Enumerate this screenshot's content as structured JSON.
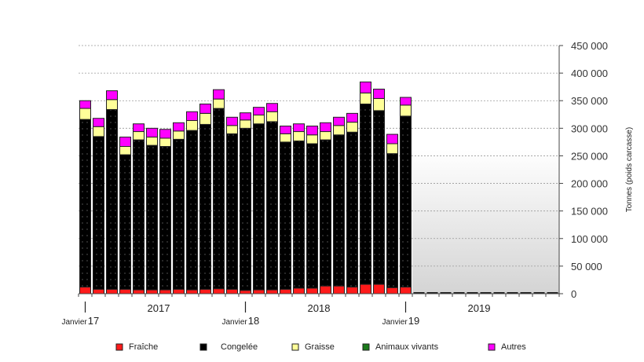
{
  "chart_data": {
    "type": "bar",
    "stacked": true,
    "title": "",
    "ylabel": "Tonnes (poids carcasse)",
    "xlabel": "",
    "ylim": [
      0,
      450000
    ],
    "yticks": [
      0,
      50000,
      100000,
      150000,
      200000,
      250000,
      300000,
      350000,
      400000,
      450000
    ],
    "ytick_labels": [
      "0",
      "50 000",
      "100 000",
      "150 000",
      "200 000",
      "250 000",
      "300 000",
      "350 000",
      "400 000",
      "450 000"
    ],
    "y_axis_side": "right",
    "grid": true,
    "month_slots": 36,
    "year_labels": [
      "2017",
      "2018",
      "2019"
    ],
    "january_labels": [
      {
        "word": "Janvier",
        "year": "17"
      },
      {
        "word": "Janvier",
        "year": "18"
      },
      {
        "word": "Janvier",
        "year": "19"
      }
    ],
    "legend_position": "bottom",
    "series": [
      {
        "name": "Fraîche",
        "color": "#ff1a1a",
        "values": [
          12000,
          8000,
          8000,
          8000,
          7000,
          7000,
          7000,
          8000,
          7000,
          8000,
          9000,
          8000,
          6000,
          7000,
          7000,
          8000,
          10000,
          10000,
          14000,
          14000,
          12000,
          17000,
          17000,
          11000,
          12000,
          0,
          0,
          0,
          0,
          0,
          0,
          0,
          0,
          0,
          0,
          0
        ]
      },
      {
        "name": "Congelée",
        "color": "#000000",
        "values": [
          304000,
          277000,
          326000,
          244000,
          272000,
          262000,
          260000,
          272000,
          289000,
          299000,
          327000,
          282000,
          294000,
          301000,
          305000,
          267000,
          267000,
          262000,
          265000,
          274000,
          281000,
          327000,
          315000,
          243000,
          310000,
          0,
          0,
          0,
          0,
          0,
          0,
          0,
          0,
          0,
          0,
          0
        ]
      },
      {
        "name": "Graisse",
        "color": "#ffff99",
        "values": [
          20000,
          18000,
          18000,
          15000,
          15000,
          15000,
          15000,
          15000,
          18000,
          20000,
          17000,
          15000,
          15000,
          16000,
          18000,
          15000,
          17000,
          16000,
          15000,
          17000,
          18000,
          20000,
          22000,
          18000,
          20000,
          0,
          0,
          0,
          0,
          0,
          0,
          0,
          0,
          0,
          0,
          0
        ]
      },
      {
        "name": "Animaux vivants",
        "color": "#1a7a1a",
        "values": [
          0,
          0,
          0,
          0,
          0,
          0,
          0,
          0,
          0,
          0,
          0,
          0,
          0,
          0,
          0,
          0,
          0,
          0,
          0,
          0,
          0,
          0,
          0,
          0,
          0,
          0,
          0,
          0,
          0,
          0,
          0,
          0,
          0,
          0,
          0,
          0
        ]
      },
      {
        "name": "Autres",
        "color": "#ff00ff",
        "values": [
          14000,
          15000,
          16000,
          17000,
          14000,
          16000,
          16000,
          15000,
          16000,
          17000,
          17000,
          15000,
          13000,
          14000,
          15000,
          14000,
          14000,
          16000,
          16000,
          15000,
          16000,
          20000,
          17000,
          17000,
          14000,
          0,
          0,
          0,
          0,
          0,
          0,
          0,
          0,
          0,
          0,
          0
        ]
      }
    ]
  }
}
